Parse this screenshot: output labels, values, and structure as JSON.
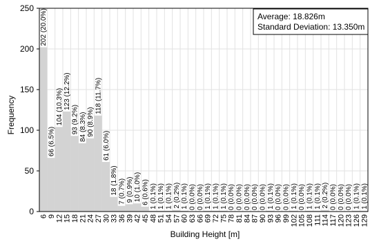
{
  "chart_data": {
    "type": "bar",
    "xlabel": "Building Height [m]",
    "ylabel": "Frequency",
    "ylim": [
      0,
      250
    ],
    "yticks": [
      0,
      50,
      100,
      150,
      200,
      250
    ],
    "grid": true,
    "categories": [
      "6",
      "9",
      "12",
      "15",
      "18",
      "21",
      "24",
      "27",
      "30",
      "33",
      "36",
      "39",
      "42",
      "45",
      "48",
      "51",
      "54",
      "57",
      "60",
      "63",
      "66",
      "69",
      "72",
      "75",
      "78",
      "81",
      "84",
      "87",
      "90",
      "93",
      "96",
      "99",
      "102",
      "105",
      "108",
      "111",
      "114",
      "117",
      "120",
      "123",
      "126",
      "129"
    ],
    "values": [
      202,
      66,
      104,
      123,
      93,
      84,
      90,
      118,
      61,
      18,
      7,
      9,
      10,
      6,
      1,
      1,
      1,
      2,
      1,
      0,
      0,
      1,
      1,
      1,
      0,
      0,
      0,
      0,
      0,
      1,
      0,
      0,
      1,
      0,
      1,
      1,
      2,
      0,
      0,
      0,
      1,
      1
    ],
    "data_labels": [
      "202 (20.0%)",
      "66 (6.5%)",
      "104 (10.3%)",
      "123 (12.2%)",
      "93 (9.2%)",
      "84 (8.3%)",
      "90 (8.9%)",
      "118 (11.7%)",
      "61 (6.0%)",
      "18 (1.8%)",
      "7 (0.7%)",
      "9 (0.9%)",
      "10 (1.0%)",
      "6 (0.6%)",
      "1 (0.1%)",
      "1 (0.1%)",
      "1 (0.1%)",
      "2 (0.2%)",
      "1 (0.1%)",
      "0 (0.0%)",
      "0 (0.0%)",
      "1 (0.1%)",
      "1 (0.1%)",
      "1 (0.1%)",
      "0 (0.0%)",
      "0 (0.0%)",
      "0 (0.0%)",
      "0 (0.0%)",
      "0 (0.0%)",
      "1 (0.1%)",
      "0 (0.0%)",
      "0 (0.0%)",
      "1 (0.1%)",
      "0 (0.0%)",
      "1 (0.1%)",
      "1 (0.1%)",
      "2 (0.2%)",
      "0 (0.0%)",
      "0 (0.0%)",
      "0 (0.0%)",
      "1 (0.1%)",
      "1 (0.1%)"
    ],
    "stats": {
      "average": "Average: 18.826m",
      "std": "Standard Deviation: 13.350m"
    },
    "colors": {
      "bar": "#d3d3d3",
      "grid": "#e2e2e2",
      "axis": "#000000"
    }
  }
}
